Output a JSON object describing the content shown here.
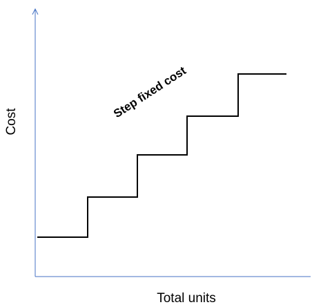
{
  "diagram": {
    "annotation": "Step fixed cost",
    "x_axis_label": "Total units",
    "y_axis_label": "Cost",
    "axis_color": "#4472C4",
    "line_color": "#000000"
  }
}
